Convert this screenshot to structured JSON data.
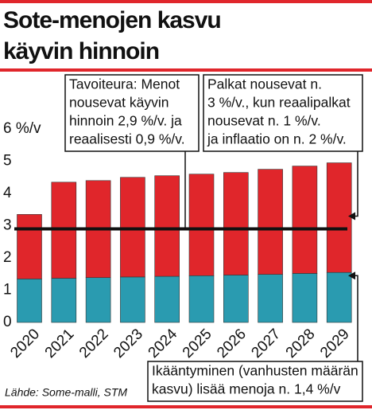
{
  "chart_data": {
    "type": "stacked_bar",
    "title_lines": [
      "Sote-menojen kasvu",
      "käyvin hinnoin"
    ],
    "categories": [
      "2020",
      "2021",
      "2022",
      "2023",
      "2024",
      "2025",
      "2026",
      "2027",
      "2028",
      "2029"
    ],
    "series": [
      {
        "color": "#2a9bb0",
        "values": [
          1.35,
          1.37,
          1.39,
          1.41,
          1.43,
          1.45,
          1.47,
          1.49,
          1.52,
          1.55
        ]
      },
      {
        "color": "#e0262b",
        "values": [
          2.0,
          2.98,
          3.01,
          3.09,
          3.12,
          3.15,
          3.18,
          3.26,
          3.33,
          3.4
        ]
      }
    ],
    "reference_line": 2.9,
    "ylim": [
      0,
      6
    ],
    "yticks": [
      0,
      1,
      2,
      3,
      4,
      5,
      {
        "value": 6,
        "label": "6 %/v"
      }
    ],
    "annotations": [
      {
        "lines": [
          "Tavoiteura: Menot",
          "nousevat käyvin",
          "hinnoin 2,9 %/v. ja",
          "reaalisesti 0,9 %/v."
        ]
      },
      {
        "lines": [
          "Palkat nousevat n.",
          "3 %/v., kun reaalipalkat",
          "nousevat n. 1 %/v.",
          "ja inflaatio on n. 2 %/v."
        ]
      },
      {
        "lines": [
          "Ikääntyminen (vanhusten määrän",
          "kasvu) lisää menoja n. 1,4 %/v"
        ]
      }
    ],
    "source": "Lähde: Some-malli, STM"
  }
}
